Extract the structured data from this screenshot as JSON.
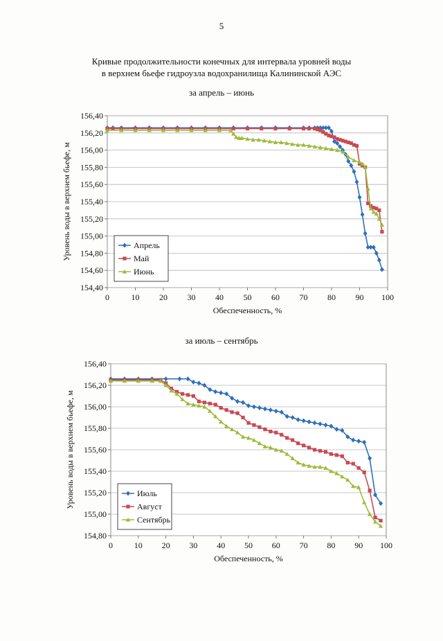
{
  "page": {
    "number": "5",
    "title_line1": "Кривые продолжительности конечных для интервала уровней воды",
    "title_line2": "в верхнем бьефе гидроузла водохранилища Калининской АЭС"
  },
  "chart_data": [
    {
      "type": "line",
      "title": "за апрель – июнь",
      "xlabel": "Обеспеченность, %",
      "ylabel": "Уровень воды в верхнем бьефе, м",
      "xlim": [
        0,
        100
      ],
      "ylim": [
        154.4,
        156.4
      ],
      "xticks": [
        0,
        10,
        20,
        30,
        40,
        50,
        60,
        70,
        80,
        90,
        100
      ],
      "yticks": [
        154.4,
        154.6,
        154.8,
        155.0,
        155.2,
        155.4,
        155.6,
        155.8,
        156.0,
        156.2,
        156.4
      ],
      "ytick_labels": [
        "154,40",
        "154,60",
        "154,80",
        "155,00",
        "155,20",
        "155,40",
        "155,60",
        "155,80",
        "156,00",
        "156,20",
        "156,40"
      ],
      "grid": true,
      "legend_position": "bottom-left",
      "series": [
        {
          "name": "Апрель",
          "color": "#2e6fba",
          "marker": "diamond",
          "x": [
            0,
            2,
            5,
            10,
            15,
            20,
            25,
            30,
            35,
            40,
            45,
            50,
            55,
            60,
            65,
            70,
            72,
            74,
            75,
            76,
            77,
            78,
            79,
            80,
            81,
            82,
            83,
            84,
            85,
            86,
            87,
            88,
            89,
            90,
            91,
            92,
            93,
            94,
            95,
            96,
            97,
            98
          ],
          "y": [
            156.26,
            156.26,
            156.26,
            156.26,
            156.26,
            156.26,
            156.26,
            156.26,
            156.26,
            156.26,
            156.26,
            156.26,
            156.26,
            156.26,
            156.26,
            156.26,
            156.26,
            156.26,
            156.26,
            156.26,
            156.26,
            156.26,
            156.26,
            156.22,
            156.1,
            156.08,
            156.04,
            156.0,
            155.95,
            155.87,
            155.82,
            155.75,
            155.63,
            155.45,
            155.25,
            155.03,
            154.87,
            154.87,
            154.87,
            154.8,
            154.72,
            154.61
          ]
        },
        {
          "name": "Май",
          "color": "#c94a52",
          "marker": "square",
          "x": [
            0,
            2,
            5,
            10,
            15,
            20,
            25,
            30,
            35,
            40,
            45,
            50,
            55,
            60,
            65,
            70,
            72,
            74,
            75,
            76,
            77,
            78,
            79,
            80,
            81,
            82,
            83,
            84,
            85,
            86,
            87,
            88,
            89,
            90,
            91,
            92,
            93,
            94,
            95,
            96,
            97,
            98
          ],
          "y": [
            156.25,
            156.25,
            156.25,
            156.25,
            156.25,
            156.25,
            156.25,
            156.25,
            156.25,
            156.25,
            156.25,
            156.25,
            156.25,
            156.25,
            156.25,
            156.25,
            156.25,
            156.25,
            156.24,
            156.23,
            156.21,
            156.19,
            156.17,
            156.16,
            156.15,
            156.13,
            156.12,
            156.11,
            156.1,
            156.09,
            156.08,
            156.06,
            156.05,
            155.84,
            155.82,
            155.8,
            155.38,
            155.35,
            155.33,
            155.32,
            155.3,
            155.05
          ]
        },
        {
          "name": "Июнь",
          "color": "#9dbb3c",
          "marker": "triangle",
          "x": [
            0,
            5,
            10,
            15,
            20,
            25,
            30,
            35,
            40,
            44,
            45,
            46,
            47,
            48,
            50,
            52,
            54,
            56,
            58,
            60,
            62,
            64,
            66,
            68,
            70,
            72,
            74,
            76,
            78,
            80,
            82,
            84,
            86,
            88,
            90,
            91,
            92,
            93,
            94,
            95,
            96,
            97,
            98
          ],
          "y": [
            156.23,
            156.23,
            156.23,
            156.23,
            156.23,
            156.23,
            156.23,
            156.23,
            156.23,
            156.23,
            156.19,
            156.15,
            156.14,
            156.14,
            156.13,
            156.12,
            156.12,
            156.11,
            156.1,
            156.09,
            156.09,
            156.08,
            156.07,
            156.06,
            156.06,
            156.05,
            156.04,
            156.03,
            156.02,
            156.01,
            156.0,
            155.98,
            155.92,
            155.88,
            155.86,
            155.84,
            155.8,
            155.55,
            155.32,
            155.28,
            155.26,
            155.2,
            155.13
          ]
        }
      ]
    },
    {
      "type": "line",
      "title": "за июль – сентябрь",
      "xlabel": "Обеспеченность, %",
      "ylabel": "Уровень воды в верхнем бьефе, м",
      "xlim": [
        0,
        100
      ],
      "ylim": [
        154.8,
        156.4
      ],
      "xticks": [
        0,
        10,
        20,
        30,
        40,
        50,
        60,
        70,
        80,
        90,
        100
      ],
      "yticks": [
        154.8,
        155.0,
        155.2,
        155.4,
        155.6,
        155.8,
        156.0,
        156.2,
        156.4
      ],
      "ytick_labels": [
        "154,80",
        "155,00",
        "155,20",
        "155,40",
        "155,60",
        "155,80",
        "156,00",
        "156,20",
        "156,40"
      ],
      "grid": true,
      "legend_position": "bottom-left",
      "series": [
        {
          "name": "Июль",
          "color": "#2e6fba",
          "marker": "diamond",
          "x": [
            0,
            5,
            10,
            15,
            20,
            25,
            28,
            30,
            32,
            34,
            36,
            38,
            40,
            42,
            44,
            46,
            48,
            50,
            52,
            54,
            56,
            58,
            60,
            62,
            64,
            66,
            68,
            70,
            72,
            74,
            76,
            78,
            80,
            82,
            84,
            86,
            88,
            90,
            92,
            94,
            96,
            98
          ],
          "y": [
            156.26,
            156.26,
            156.26,
            156.26,
            156.26,
            156.26,
            156.26,
            156.23,
            156.22,
            156.2,
            156.16,
            156.14,
            156.13,
            156.12,
            156.08,
            156.05,
            156.04,
            156.01,
            156.0,
            155.99,
            155.98,
            155.97,
            155.96,
            155.95,
            155.91,
            155.9,
            155.88,
            155.87,
            155.86,
            155.85,
            155.84,
            155.83,
            155.82,
            155.79,
            155.78,
            155.72,
            155.69,
            155.68,
            155.67,
            155.52,
            155.18,
            155.1
          ]
        },
        {
          "name": "Август",
          "color": "#c94a52",
          "marker": "square",
          "x": [
            0,
            5,
            10,
            15,
            18,
            20,
            22,
            24,
            26,
            28,
            30,
            32,
            34,
            36,
            38,
            40,
            42,
            44,
            46,
            48,
            50,
            52,
            54,
            56,
            58,
            60,
            62,
            64,
            66,
            68,
            70,
            72,
            74,
            76,
            78,
            80,
            82,
            84,
            86,
            88,
            90,
            92,
            94,
            96,
            98
          ],
          "y": [
            156.25,
            156.25,
            156.25,
            156.25,
            156.25,
            156.22,
            156.17,
            156.14,
            156.12,
            156.11,
            156.1,
            156.05,
            156.04,
            156.03,
            156.02,
            155.99,
            155.97,
            155.95,
            155.94,
            155.9,
            155.85,
            155.83,
            155.81,
            155.79,
            155.77,
            155.76,
            155.74,
            155.71,
            155.69,
            155.66,
            155.64,
            155.62,
            155.6,
            155.59,
            155.58,
            155.56,
            155.55,
            155.54,
            155.48,
            155.47,
            155.43,
            155.39,
            155.22,
            154.97,
            154.94
          ]
        },
        {
          "name": "Сентябрь",
          "color": "#9dbb3c",
          "marker": "triangle",
          "x": [
            0,
            5,
            10,
            15,
            18,
            20,
            22,
            24,
            26,
            28,
            30,
            32,
            34,
            36,
            38,
            40,
            42,
            44,
            46,
            48,
            50,
            52,
            54,
            56,
            58,
            60,
            62,
            64,
            66,
            68,
            70,
            72,
            74,
            76,
            78,
            80,
            82,
            84,
            86,
            88,
            90,
            92,
            94,
            96,
            98
          ],
          "y": [
            156.24,
            156.24,
            156.24,
            156.24,
            156.24,
            156.2,
            156.15,
            156.12,
            156.07,
            156.03,
            156.02,
            156.01,
            156.0,
            155.96,
            155.91,
            155.86,
            155.82,
            155.79,
            155.76,
            155.72,
            155.71,
            155.69,
            155.66,
            155.63,
            155.62,
            155.6,
            155.59,
            155.56,
            155.52,
            155.48,
            155.46,
            155.45,
            155.44,
            155.44,
            155.43,
            155.4,
            155.38,
            155.35,
            155.32,
            155.26,
            155.25,
            155.11,
            155.0,
            154.93,
            154.89
          ]
        }
      ]
    }
  ]
}
